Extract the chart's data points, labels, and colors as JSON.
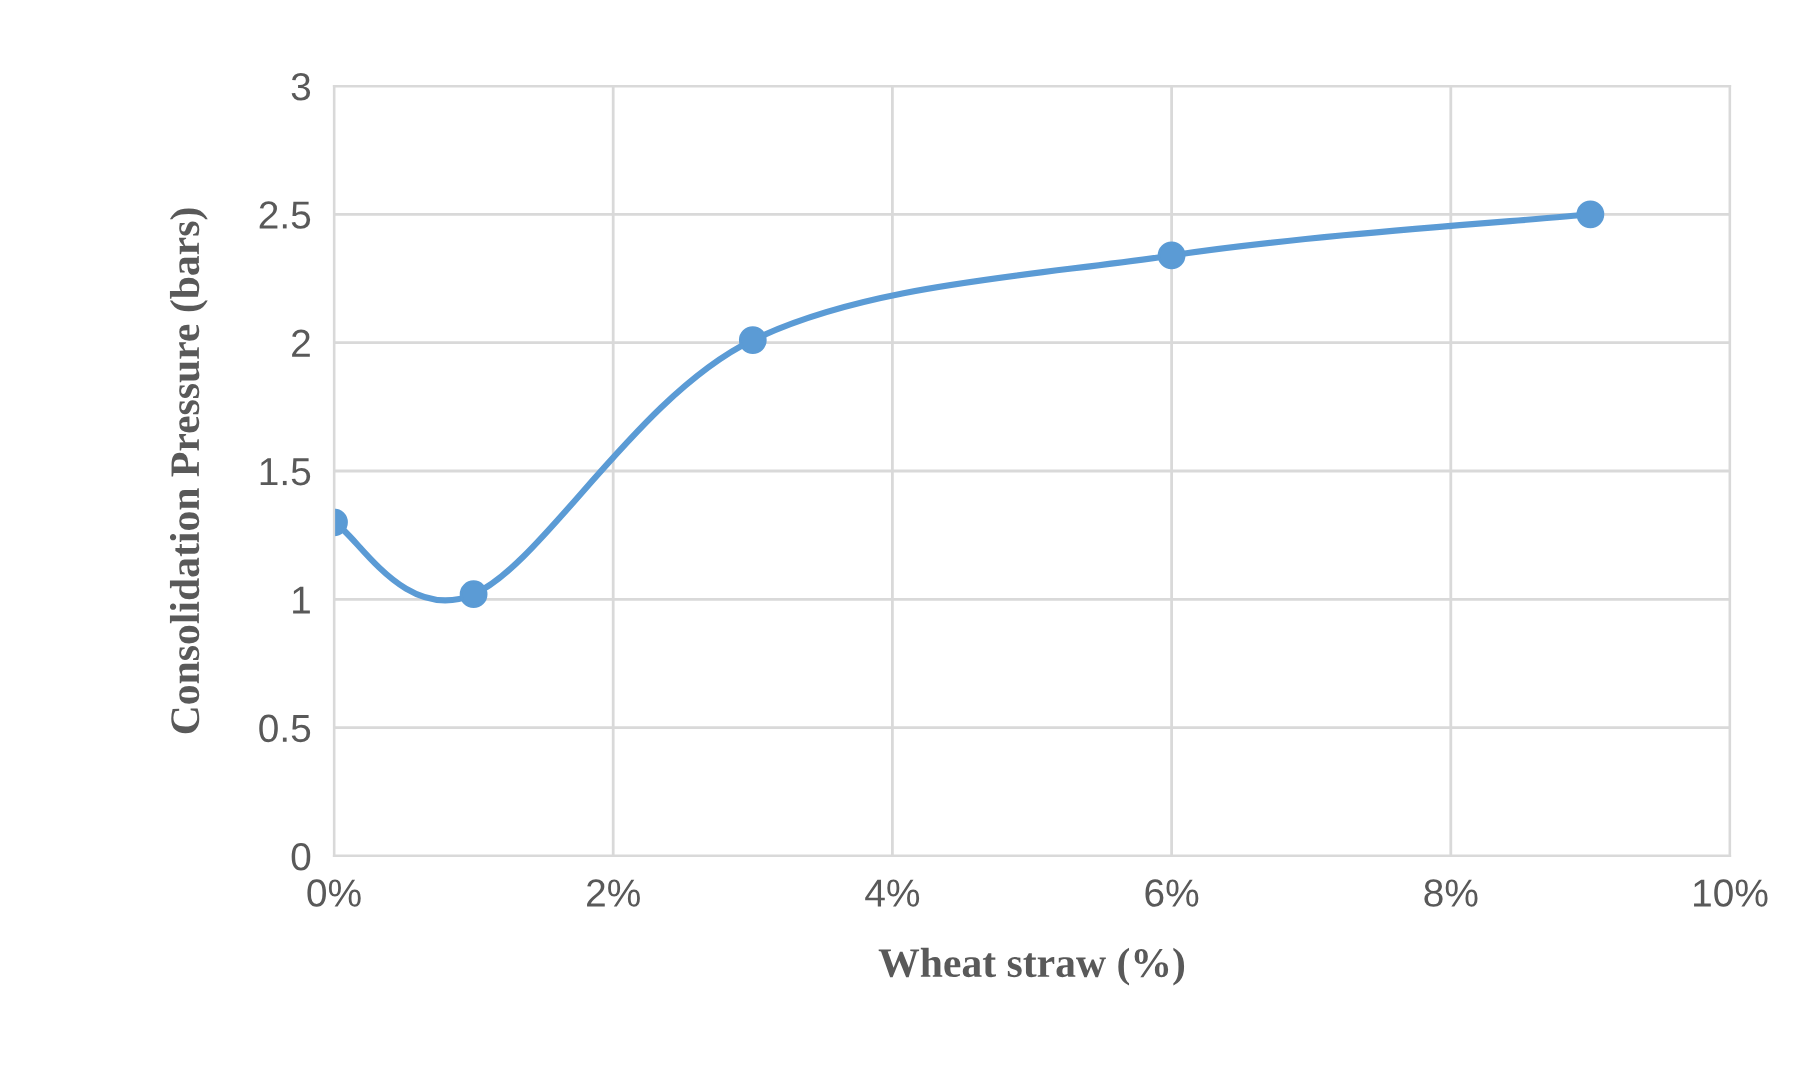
{
  "chart_data": {
    "type": "line",
    "xlabel": "Wheat straw (%)",
    "ylabel": "Consolidation Pressure (bars)",
    "x": [
      0,
      1,
      3,
      6,
      9
    ],
    "series": [
      {
        "color": "#5b9bd5",
        "values": [
          1.3,
          1.02,
          2.01,
          2.34,
          2.5
        ]
      }
    ],
    "xlim": [
      0,
      10
    ],
    "xticks": [
      {
        "value": 0,
        "label": "0%"
      },
      {
        "value": 2,
        "label": "2%"
      },
      {
        "value": 4,
        "label": "4%"
      },
      {
        "value": 6,
        "label": "6%"
      },
      {
        "value": 8,
        "label": "8%"
      },
      {
        "value": 10,
        "label": "10%"
      }
    ],
    "ylim": [
      0,
      3
    ],
    "yticks": [
      0,
      0.5,
      1,
      1.5,
      2,
      2.5,
      3
    ],
    "grid": true,
    "marker": "circle",
    "line_style": "solid"
  }
}
